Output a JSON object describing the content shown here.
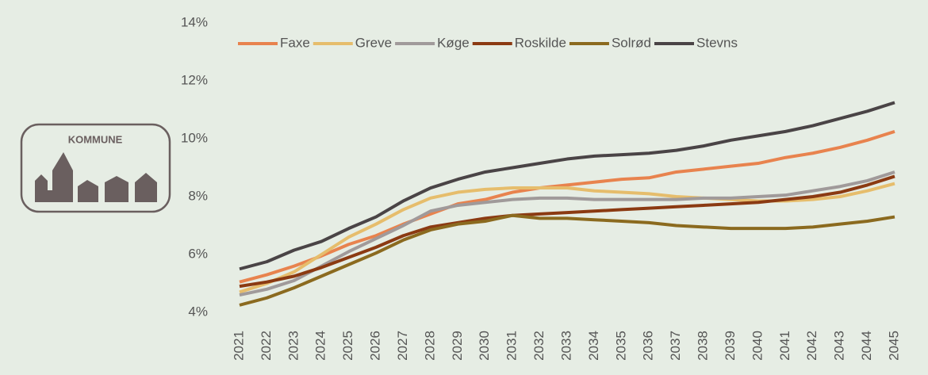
{
  "logo": {
    "text": "KOMMUNE"
  },
  "chart_data": {
    "type": "line",
    "categories": [
      "2021",
      "2022",
      "2023",
      "2024",
      "2025",
      "2026",
      "2027",
      "2028",
      "2029",
      "2030",
      "2031",
      "2032",
      "2033",
      "2034",
      "2035",
      "2036",
      "2037",
      "2038",
      "2039",
      "2040",
      "2041",
      "2042",
      "2043",
      "2044",
      "2045"
    ],
    "series": [
      {
        "name": "Faxe",
        "color": "#e8834e",
        "values": [
          5.05,
          5.3,
          5.6,
          5.95,
          6.35,
          6.65,
          7.05,
          7.4,
          7.75,
          7.9,
          8.15,
          8.3,
          8.4,
          8.5,
          8.6,
          8.65,
          8.85,
          8.95,
          9.05,
          9.15,
          9.35,
          9.5,
          9.7,
          9.95,
          10.25
        ]
      },
      {
        "name": "Greve",
        "color": "#e6bd6c",
        "values": [
          4.7,
          5.0,
          5.4,
          6.0,
          6.6,
          7.05,
          7.55,
          7.95,
          8.15,
          8.25,
          8.3,
          8.3,
          8.3,
          8.2,
          8.15,
          8.1,
          8.0,
          7.95,
          7.9,
          7.85,
          7.85,
          7.9,
          8.0,
          8.2,
          8.45
        ]
      },
      {
        "name": "Køge",
        "color": "#a09a9a",
        "values": [
          4.6,
          4.8,
          5.1,
          5.6,
          6.1,
          6.55,
          7.0,
          7.5,
          7.7,
          7.8,
          7.9,
          7.95,
          7.95,
          7.9,
          7.9,
          7.9,
          7.9,
          7.95,
          7.95,
          8.0,
          8.05,
          8.2,
          8.35,
          8.55,
          8.85
        ]
      },
      {
        "name": "Roskilde",
        "color": "#8b3a12",
        "values": [
          4.9,
          5.05,
          5.25,
          5.55,
          5.9,
          6.25,
          6.65,
          6.95,
          7.1,
          7.25,
          7.35,
          7.4,
          7.45,
          7.5,
          7.55,
          7.6,
          7.65,
          7.7,
          7.75,
          7.8,
          7.9,
          8.0,
          8.15,
          8.4,
          8.7
        ]
      },
      {
        "name": "Solrød",
        "color": "#8b6a1f",
        "values": [
          4.25,
          4.5,
          4.85,
          5.25,
          5.65,
          6.05,
          6.5,
          6.85,
          7.05,
          7.15,
          7.35,
          7.25,
          7.25,
          7.2,
          7.15,
          7.1,
          7.0,
          6.95,
          6.9,
          6.9,
          6.9,
          6.95,
          7.05,
          7.15,
          7.3
        ]
      },
      {
        "name": "Stevns",
        "color": "#4a4446",
        "values": [
          5.5,
          5.75,
          6.15,
          6.45,
          6.9,
          7.3,
          7.85,
          8.3,
          8.6,
          8.85,
          9.0,
          9.15,
          9.3,
          9.4,
          9.45,
          9.5,
          9.6,
          9.75,
          9.95,
          10.1,
          10.25,
          10.45,
          10.7,
          10.95,
          11.25
        ]
      }
    ],
    "ylim": [
      4,
      14
    ],
    "yticks": [
      {
        "value": 4,
        "label": "4%"
      },
      {
        "value": 6,
        "label": "6%"
      },
      {
        "value": 8,
        "label": "8%"
      },
      {
        "value": 10,
        "label": "10%"
      },
      {
        "value": 12,
        "label": "12%"
      },
      {
        "value": 14,
        "label": "14%"
      }
    ],
    "legend": "top"
  }
}
